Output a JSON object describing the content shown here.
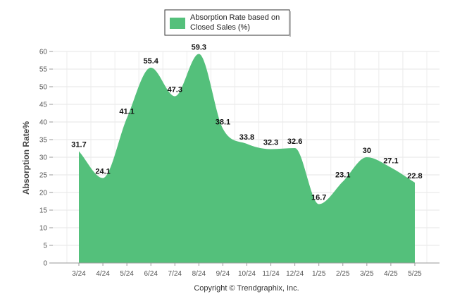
{
  "chart_data": {
    "type": "area",
    "categories": [
      "3/24",
      "4/24",
      "5/24",
      "6/24",
      "7/24",
      "8/24",
      "9/24",
      "10/24",
      "11/24",
      "12/24",
      "1/25",
      "2/25",
      "3/25",
      "4/25",
      "5/25"
    ],
    "series": [
      {
        "name": "Absorption Rate based on Closed Sales (%)",
        "values": [
          31.7,
          24.1,
          41.1,
          55.4,
          47.3,
          59.3,
          38.1,
          33.8,
          32.3,
          32.6,
          16.7,
          23.1,
          30,
          27.1,
          22.8
        ],
        "color": "#54c07b"
      }
    ],
    "data_labels": [
      "31.7",
      "24.1",
      "41.1",
      "55.4",
      "47.3",
      "59.3",
      "38.1",
      "33.8",
      "32.3",
      "32.6",
      "16.7",
      "23.1",
      "30",
      "27.1",
      "22.8"
    ],
    "legend": {
      "lines": [
        "Absorption Rate based on",
        "Closed Sales (%)"
      ],
      "placement": "top-center"
    },
    "ylabel": "Absorption Rate%",
    "ylim": [
      0,
      60
    ],
    "yticks": [
      "0",
      "5",
      "10",
      "15",
      "20",
      "25",
      "30",
      "35",
      "40",
      "45",
      "50",
      "55",
      "60"
    ],
    "grid": true,
    "footer": "Copyright © Trendgraphix, Inc."
  }
}
